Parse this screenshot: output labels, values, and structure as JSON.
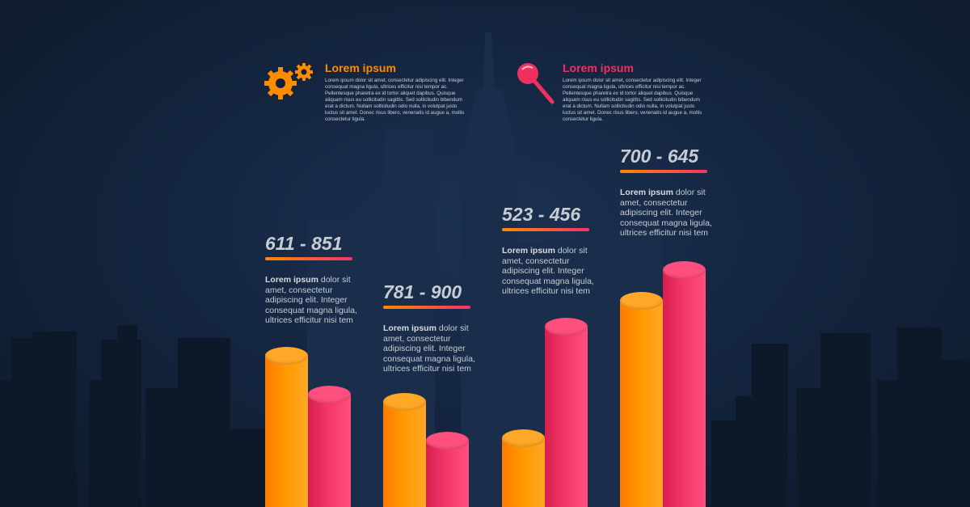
{
  "colors": {
    "orange": "#ff8c00",
    "pink": "#f0305f",
    "background": "#142540",
    "text": "#c7ccd3"
  },
  "info_blocks": [
    {
      "icon": "gears-icon",
      "title": "Lorem ipsum",
      "color": "#ff8c00",
      "body": "Lorem ipsum dolor sit amet, consectetur adipiscing elit. Integer consequat magna ligula, ultrices efficitur nisi tempor ac. Pellentesque pharetra ex id tortor aliquet dapibus. Quisque aliquam risus eu sollicitudin sagittis. Sed sollicitudin bibendum erat a dictum. Nullam sollicitudin odio nulla, in volutpat justo luctus sit amet. Donec risus libero, venenatis id augue a, mollis consectetur ligula."
    },
    {
      "icon": "magnifier-icon",
      "title": "Lorem ipsum",
      "color": "#f0305f",
      "body": "Lorem ipsum dolor sit amet, consectetur adipiscing elit. Integer consequat magna ligula, ultrices efficitur nisi tempor ac. Pellentesque pharetra ex id tortor aliquet dapibus. Quisque aliquam risus eu sollicitudin sagittis. Sed sollicitudin bibendum erat a dictum. Nullam sollicitudin odio nulla, in volutpat justo luctus sit amet. Donec risus libero, venenatis id augue a, mollis consectetur ligula."
    }
  ],
  "groups": [
    {
      "range": "611 - 851",
      "desc_bold": "Lorem ipsum",
      "desc": " dolor sit amet, consectetur adipiscing elit. Integer consequat magna ligula, ultrices efficitur nisi tem"
    },
    {
      "range": "781 - 900",
      "desc_bold": "Lorem ipsum",
      "desc": " dolor sit amet, consectetur adipiscing elit. Integer consequat magna ligula, ultrices efficitur nisi tem"
    },
    {
      "range": "523 - 456",
      "desc_bold": "Lorem ipsum",
      "desc": " dolor sit amet, consectetur adipiscing elit. Integer consequat magna ligula, ultrices efficitur nisi tem"
    },
    {
      "range": "700 - 645",
      "desc_bold": "Lorem ipsum",
      "desc": " dolor sit amet, consectetur adipiscing elit. Integer consequat magna ligula, ultrices efficitur nisi tem"
    }
  ],
  "chart_data": {
    "type": "bar",
    "style": "3d-cylinders",
    "categories": [
      "611 - 851",
      "781 - 900",
      "523 - 456",
      "700 - 645"
    ],
    "axes": "none",
    "grid": false,
    "series": [
      {
        "color": "#ff8c00",
        "values": [
          62,
          44,
          30,
          83
        ]
      },
      {
        "color": "#f0305f",
        "values": [
          47,
          29,
          73,
          95
        ]
      }
    ]
  }
}
